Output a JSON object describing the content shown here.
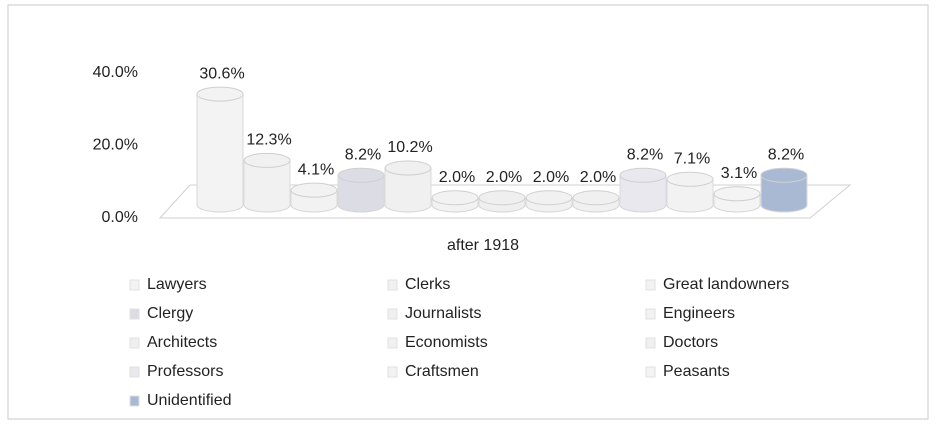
{
  "chart_data": {
    "type": "bar",
    "categories": [
      "after 1918"
    ],
    "ylim": [
      0,
      40
    ],
    "yticks": [
      {
        "value": 0,
        "label": "0.0%"
      },
      {
        "value": 20,
        "label": "20.0%"
      },
      {
        "value": 40,
        "label": "40.0%"
      }
    ],
    "grid": false,
    "legend": "bottom",
    "series": [
      {
        "name": "Lawyers",
        "color": "#f3f3f3",
        "values": [
          30.6
        ],
        "value_labels": [
          "30.6%"
        ]
      },
      {
        "name": "Clerks",
        "color": "#f1f1f1",
        "values": [
          12.3
        ],
        "value_labels": [
          "12.3%"
        ]
      },
      {
        "name": "Great landowners",
        "color": "#f2f2f2",
        "values": [
          4.1
        ],
        "value_labels": [
          "4.1%"
        ]
      },
      {
        "name": "Clergy",
        "color": "#dcdce4",
        "values": [
          8.2
        ],
        "value_labels": [
          "8.2%"
        ]
      },
      {
        "name": "Journalists",
        "color": "#f0f0f0",
        "values": [
          10.2
        ],
        "value_labels": [
          "10.2%"
        ]
      },
      {
        "name": "Engineers",
        "color": "#f2f2f2",
        "values": [
          2.0
        ],
        "value_labels": [
          "2.0%"
        ]
      },
      {
        "name": "Architects",
        "color": "#efefef",
        "values": [
          2.0
        ],
        "value_labels": [
          "2.0%"
        ]
      },
      {
        "name": "Economists",
        "color": "#f1f1f1",
        "values": [
          2.0
        ],
        "value_labels": [
          "2.0%"
        ]
      },
      {
        "name": "Doctors",
        "color": "#f0f0f0",
        "values": [
          2.0
        ],
        "value_labels": [
          "2.0%"
        ]
      },
      {
        "name": "Professors",
        "color": "#e8e8ee",
        "values": [
          8.2
        ],
        "value_labels": [
          "8.2%"
        ]
      },
      {
        "name": "Craftsmen",
        "color": "#f2f2f2",
        "values": [
          7.1
        ],
        "value_labels": [
          "7.1%"
        ]
      },
      {
        "name": "Peasants",
        "color": "#f4f4f4",
        "values": [
          3.1
        ],
        "value_labels": [
          "3.1%"
        ]
      },
      {
        "name": "Unidentified",
        "color": "#a9b9d3",
        "values": [
          8.2
        ],
        "value_labels": [
          "8.2%"
        ]
      }
    ]
  }
}
